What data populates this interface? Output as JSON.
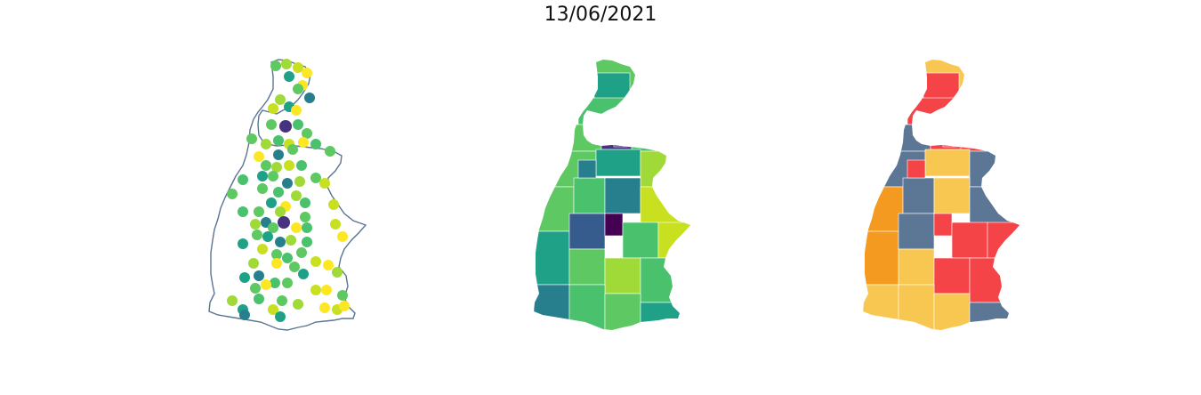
{
  "figure": {
    "title": "13/06/2021"
  },
  "panels": [
    {
      "id": "dots",
      "kind": "proportional-symbols"
    },
    {
      "id": "choropleth",
      "kind": "choropleth"
    },
    {
      "id": "categories",
      "kind": "categorical"
    }
  ],
  "colors": {
    "outline": "#5a7592",
    "viridis": [
      "#440154",
      "#46327e",
      "#365c8d",
      "#277f8e",
      "#1fa187",
      "#4ac16d",
      "#5ec962",
      "#a0da39",
      "#c8e020",
      "#fde725"
    ],
    "categorical": {
      "red": "#f54447",
      "slate": "#5c7795",
      "yellow": "#f8c752",
      "orange": "#f59a21"
    }
  }
}
